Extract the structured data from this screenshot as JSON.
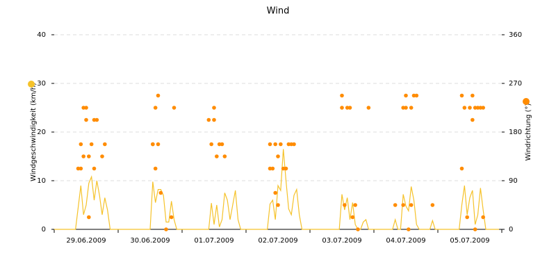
{
  "chart_data": {
    "type": "line",
    "title": "Wind",
    "ylabel": "Windgeschwindigkeit (km/h)",
    "y2label": "Windrichtung (°)",
    "xlim": [
      0,
      168
    ],
    "xticks": [
      {
        "value": 12,
        "label": "29.06.2009"
      },
      {
        "value": 36,
        "label": "30.06.2009"
      },
      {
        "value": 60,
        "label": "01.07.2009"
      },
      {
        "value": 84,
        "label": "02.07.2009"
      },
      {
        "value": 108,
        "label": "03.07.2009"
      },
      {
        "value": 132,
        "label": "04.07.2009"
      },
      {
        "value": 156,
        "label": "05.07.2009"
      }
    ],
    "ylim": [
      0,
      40
    ],
    "yticks": [
      0,
      10,
      20,
      30,
      40
    ],
    "y2lim": [
      0,
      360
    ],
    "y2ticks": [
      0,
      90,
      180,
      270,
      360
    ],
    "grid": true,
    "series": [
      {
        "type": "line",
        "color": "#f5c22a",
        "x": [
          0,
          1,
          2,
          3,
          4,
          5,
          6,
          7,
          8,
          9,
          10,
          11,
          12,
          13,
          14,
          15,
          16,
          17,
          18,
          19,
          20,
          21,
          22,
          23,
          24,
          25,
          26,
          27,
          28,
          29,
          30,
          31,
          32,
          33,
          34,
          35,
          36,
          37,
          38,
          39,
          40,
          41,
          42,
          43,
          44,
          45,
          46,
          47,
          48,
          49,
          50,
          51,
          52,
          53,
          54,
          55,
          56,
          57,
          58,
          59,
          60,
          61,
          62,
          63,
          64,
          65,
          66,
          67,
          68,
          69,
          70,
          71,
          72,
          73,
          74,
          75,
          76,
          77,
          78,
          79,
          80,
          81,
          82,
          83,
          84,
          85,
          86,
          87,
          88,
          89,
          90,
          91,
          92,
          93,
          94,
          95,
          96,
          97,
          98,
          99,
          100,
          101,
          102,
          103,
          104,
          105,
          106,
          107,
          108,
          109,
          110,
          111,
          112,
          113,
          114,
          115,
          116,
          117,
          118,
          119,
          120,
          121,
          122,
          123,
          124,
          125,
          126,
          127,
          128,
          129,
          130,
          131,
          132,
          133,
          134,
          135,
          136,
          137,
          138,
          139,
          140,
          141,
          142,
          143,
          144,
          145,
          146,
          147,
          148,
          149,
          150,
          151,
          152,
          153,
          154,
          155,
          156,
          157,
          158,
          159,
          160,
          161,
          162,
          163,
          164,
          165,
          166,
          167
        ],
        "values": [
          0,
          0,
          0,
          0,
          0,
          0,
          0,
          0,
          0,
          4.5,
          9,
          3,
          5,
          9.5,
          10.8,
          6,
          10,
          7,
          3,
          6.5,
          4,
          0,
          0,
          0,
          0,
          0,
          0,
          0,
          0,
          0,
          0,
          0,
          0,
          0,
          0,
          0,
          0,
          9.8,
          5.5,
          8.2,
          8.2,
          7,
          1.5,
          1.5,
          5.8,
          2,
          0,
          0,
          0,
          0,
          0,
          0,
          0,
          0,
          0,
          0,
          0,
          0,
          0,
          5.4,
          1,
          5,
          0.5,
          2,
          7.5,
          6,
          2,
          5,
          8,
          2,
          0,
          0,
          0,
          0,
          0,
          0,
          0,
          0,
          0,
          0,
          0,
          5.2,
          6,
          2,
          9,
          8,
          16.5,
          10,
          4.2,
          3,
          7,
          8.2,
          3,
          0,
          0,
          0,
          0,
          0,
          0,
          0,
          0,
          0,
          0,
          0,
          0,
          0,
          0,
          0,
          7.2,
          4,
          6.5,
          2,
          5.5,
          1,
          0,
          0,
          1.5,
          2,
          0,
          0,
          0,
          0,
          0,
          0,
          0,
          0,
          0,
          0,
          2,
          0,
          0,
          7.2,
          4.8,
          3.8,
          8.8,
          6,
          1,
          0,
          0,
          0,
          0,
          0,
          1.8,
          0,
          0,
          0,
          0,
          0,
          0,
          0,
          0,
          0,
          0,
          5,
          9,
          3,
          6.5,
          8,
          1,
          3,
          8.5,
          4,
          0,
          0,
          0,
          0,
          0,
          0
        ]
      },
      {
        "type": "scatter",
        "axis": "y2",
        "color": "#ff8c00",
        "x": [
          9,
          10,
          10,
          11,
          11,
          12,
          12,
          13,
          13,
          14,
          15,
          15,
          16,
          18,
          19,
          37,
          37,
          38,
          38,
          39,
          39,
          40,
          42,
          44,
          45,
          58,
          59,
          60,
          60,
          61,
          62,
          63,
          64,
          81,
          81,
          82,
          83,
          83,
          84,
          84,
          85,
          86,
          87,
          88,
          89,
          90,
          108,
          108,
          109,
          110,
          111,
          112,
          113,
          114,
          118,
          128,
          131,
          131,
          132,
          132,
          133,
          134,
          134,
          135,
          136,
          142,
          153,
          153,
          154,
          155,
          156,
          157,
          157,
          158,
          158,
          159,
          160,
          161,
          161
        ],
        "values": [
          112.5,
          157.5,
          112.5,
          135,
          225,
          202.5,
          225,
          22.5,
          135,
          157.5,
          112.5,
          202.5,
          202.5,
          135,
          157.5,
          157.5,
          157.5,
          112.5,
          225,
          157.5,
          247.5,
          67.5,
          0,
          22.5,
          225,
          202.5,
          157.5,
          202.5,
          225,
          135,
          157.5,
          157.5,
          135,
          112.5,
          157.5,
          112.5,
          67.5,
          157.5,
          45,
          135,
          157.5,
          112.5,
          112.5,
          157.5,
          157.5,
          157.5,
          225,
          247.5,
          45,
          225,
          225,
          22.5,
          45,
          0,
          225,
          45,
          225,
          45,
          247.5,
          225,
          0,
          225,
          45,
          247.5,
          247.5,
          45,
          247.5,
          112.5,
          225,
          22.5,
          225,
          202.5,
          247.5,
          225,
          0,
          225,
          225,
          22.5,
          225
        ]
      }
    ]
  }
}
